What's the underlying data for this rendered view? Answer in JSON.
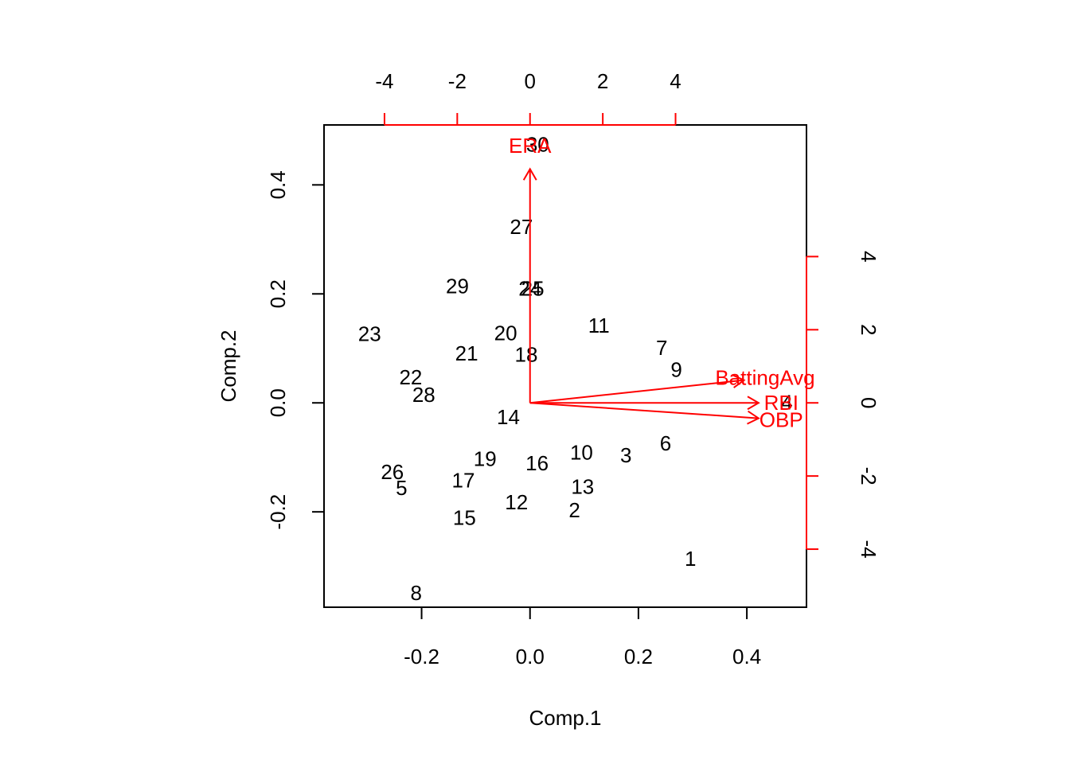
{
  "chart_data": {
    "type": "scatter",
    "subtype": "biplot",
    "title": "",
    "xlabel": "Comp.1",
    "ylabel": "Comp.2",
    "xlim": [
      -0.38,
      0.51
    ],
    "ylim": [
      -0.375,
      0.51
    ],
    "x_ticks": [
      -0.2,
      0.0,
      0.2,
      0.4
    ],
    "x_tick_labels": [
      "-0.2",
      "0.0",
      "0.2",
      "0.4"
    ],
    "y_ticks": [
      -0.2,
      0.0,
      0.2,
      0.4
    ],
    "y_tick_labels": [
      "-0.2",
      "0.0",
      "0.2",
      "0.4"
    ],
    "top_ticks": [
      -4,
      -2,
      0,
      2,
      4
    ],
    "top_tick_labels": [
      "-4",
      "-2",
      "0",
      "2",
      "4"
    ],
    "right_ticks": [
      -4,
      -2,
      0,
      2,
      4
    ],
    "right_tick_labels": [
      "-4",
      "-2",
      "0",
      "2",
      "4"
    ],
    "loading_scale": 14.9,
    "colors": {
      "points": "#000000",
      "loadings": "#ff0000"
    },
    "points": [
      {
        "label": "1",
        "x": 0.296,
        "y": -0.286
      },
      {
        "label": "2",
        "x": 0.082,
        "y": -0.197
      },
      {
        "label": "3",
        "x": 0.177,
        "y": -0.096
      },
      {
        "label": "4",
        "x": 0.474,
        "y": 0.001
      },
      {
        "label": "5",
        "x": -0.237,
        "y": -0.156
      },
      {
        "label": "6",
        "x": 0.25,
        "y": -0.074
      },
      {
        "label": "7",
        "x": 0.243,
        "y": 0.101
      },
      {
        "label": "8",
        "x": -0.21,
        "y": -0.349
      },
      {
        "label": "9",
        "x": 0.27,
        "y": 0.061
      },
      {
        "label": "10",
        "x": 0.095,
        "y": -0.091
      },
      {
        "label": "11",
        "x": 0.127,
        "y": 0.142
      },
      {
        "label": "12",
        "x": -0.025,
        "y": -0.182
      },
      {
        "label": "13",
        "x": 0.097,
        "y": -0.154
      },
      {
        "label": "14",
        "x": -0.04,
        "y": -0.026
      },
      {
        "label": "15",
        "x": -0.121,
        "y": -0.211
      },
      {
        "label": "16",
        "x": 0.013,
        "y": -0.111
      },
      {
        "label": "17",
        "x": -0.123,
        "y": -0.142
      },
      {
        "label": "18",
        "x": -0.007,
        "y": 0.089
      },
      {
        "label": "19",
        "x": -0.083,
        "y": -0.103
      },
      {
        "label": "20",
        "x": -0.045,
        "y": 0.128
      },
      {
        "label": "21",
        "x": -0.117,
        "y": 0.091
      },
      {
        "label": "22",
        "x": -0.22,
        "y": 0.047
      },
      {
        "label": "23",
        "x": -0.296,
        "y": 0.127
      },
      {
        "label": "24",
        "x": 0.0,
        "y": 0.21
      },
      {
        "label": "25",
        "x": 0.005,
        "y": 0.21
      },
      {
        "label": "26",
        "x": -0.254,
        "y": -0.127
      },
      {
        "label": "27",
        "x": -0.016,
        "y": 0.323
      },
      {
        "label": "28",
        "x": -0.196,
        "y": 0.015
      },
      {
        "label": "29",
        "x": -0.134,
        "y": 0.214
      },
      {
        "label": "30",
        "x": 0.014,
        "y": 0.474
      }
    ],
    "loadings": [
      {
        "name": "ERA",
        "x": 0.0,
        "y": 0.0288,
        "label_x": 0.0,
        "label_y": 0.0317
      },
      {
        "name": "BattingAvg",
        "x": 0.0265,
        "y": 0.0028,
        "label_x": 0.0291,
        "label_y": 0.0031
      },
      {
        "name": "RBI",
        "x": 0.0283,
        "y": 0.0,
        "label_x": 0.0311,
        "label_y": 0.0
      },
      {
        "name": "OBP",
        "x": 0.0283,
        "y": -0.0019,
        "label_x": 0.0311,
        "label_y": -0.0021
      }
    ]
  }
}
